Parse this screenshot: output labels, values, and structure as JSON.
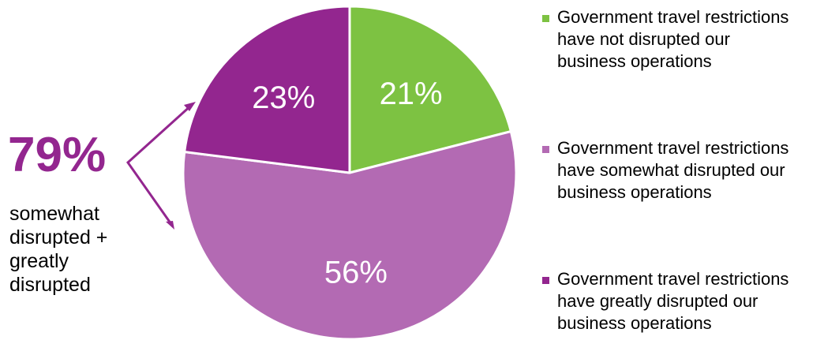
{
  "chart_data": {
    "type": "pie",
    "slices": [
      {
        "label": "Government travel restrictions have not disrupted our business operations",
        "value": 21,
        "display": "21%",
        "color": "#7dc242"
      },
      {
        "label": "Government travel restrictions have somewhat disrupted our business operations",
        "value": 56,
        "display": "56%",
        "color": "#b36ab3"
      },
      {
        "label": "Government travel restrictions have greatly disrupted our business operations",
        "value": 23,
        "display": "23%",
        "color": "#93268f"
      }
    ],
    "start_angle_deg": 0,
    "direction": "clockwise",
    "legend_position": "right"
  },
  "callout": {
    "value": "79%",
    "lines": [
      "somewhat",
      "disrupted +",
      "greatly",
      "disrupted"
    ],
    "color": "#93268f"
  },
  "legend": {
    "items": [
      {
        "lines": [
          "Government travel restrictions",
          "have not disrupted our",
          "business operations"
        ],
        "color": "#7dc242"
      },
      {
        "lines": [
          "Government travel restrictions",
          "have somewhat disrupted our",
          "business operations"
        ],
        "color": "#b36ab3"
      },
      {
        "lines": [
          "Government travel restrictions",
          "have greatly disrupted our",
          "business operations"
        ],
        "color": "#93268f"
      }
    ]
  }
}
